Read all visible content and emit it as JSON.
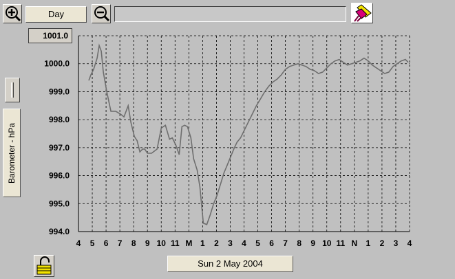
{
  "toolbar": {
    "zoom_in_icon": "zoom-in-magnifier-plus",
    "range_label": "Day",
    "zoom_out_icon": "zoom-out-magnifier-minus",
    "search_value": "",
    "eraser_icon": "eraser-pen"
  },
  "y_axis_button_label": "Barometer - hPa",
  "max_value_display": "1001.0",
  "date_label": "Sun 2 May 2004",
  "lock_icon": "padlock-open",
  "colors": {
    "background": "#c0c0c0",
    "plot_line": "#6e6e6e",
    "grid": "#000000"
  },
  "chart_data": {
    "type": "line",
    "xlabel": "",
    "ylabel": "Barometer - hPa",
    "ylim": [
      994.0,
      1001.0
    ],
    "ytick_labels": [
      "1001.0",
      "1000.0",
      "999.0",
      "998.0",
      "997.0",
      "996.0",
      "995.0",
      "994.0"
    ],
    "yticks": [
      1001,
      1000,
      999,
      998,
      997,
      996,
      995,
      994
    ],
    "xtick_labels": [
      "4",
      "5",
      "6",
      "7",
      "8",
      "9",
      "10",
      "11",
      "M",
      "1",
      "2",
      "3",
      "4",
      "5",
      "6",
      "7",
      "8",
      "9",
      "10",
      "11",
      "N",
      "1",
      "2",
      "3",
      "4"
    ],
    "grid": true,
    "series": [
      {
        "x": [
          0.75,
          0.9,
          1.1,
          1.35,
          1.5,
          1.65,
          1.8,
          2.05,
          2.35,
          2.7,
          3.05,
          3.3,
          3.6,
          3.8,
          4.05,
          4.25,
          4.45,
          4.65,
          4.8,
          5.0,
          5.3,
          5.7,
          6.0,
          6.3,
          6.6,
          6.8,
          7.05,
          7.3,
          7.5,
          7.7,
          7.9,
          8.15,
          8.35,
          8.6,
          8.8,
          9.05,
          9.3,
          9.55,
          9.8,
          10.05,
          10.3,
          10.55,
          10.8,
          11.05,
          11.3,
          11.5,
          11.75,
          12.0,
          12.3,
          12.6,
          12.9,
          13.2,
          13.5,
          13.8,
          14.1,
          14.4,
          14.7,
          15.0,
          15.3,
          15.6,
          15.9,
          16.2,
          16.5,
          16.8,
          17.1,
          17.4,
          17.7,
          18.0,
          18.3,
          18.6,
          18.9,
          19.2,
          19.5,
          19.8,
          20.1,
          20.4,
          20.7,
          21.0,
          21.3,
          21.6,
          21.9,
          22.2,
          22.5,
          22.8,
          23.1,
          23.4,
          23.7,
          23.9
        ],
        "y": [
          999.4,
          999.6,
          999.8,
          1000.2,
          1000.65,
          1000.45,
          999.7,
          999.0,
          998.3,
          998.3,
          998.2,
          998.1,
          998.5,
          997.9,
          997.4,
          997.25,
          996.85,
          996.95,
          996.95,
          996.8,
          996.8,
          996.95,
          997.7,
          997.8,
          997.3,
          997.35,
          997.1,
          996.75,
          997.75,
          997.8,
          997.75,
          997.35,
          996.6,
          996.2,
          995.6,
          994.3,
          994.25,
          994.6,
          995.0,
          995.3,
          995.7,
          996.1,
          996.4,
          996.7,
          997.0,
          997.2,
          997.35,
          997.6,
          997.9,
          998.2,
          998.5,
          998.75,
          999.0,
          999.2,
          999.35,
          999.45,
          999.6,
          999.8,
          999.9,
          999.95,
          1000.0,
          999.95,
          999.9,
          999.8,
          999.75,
          999.65,
          999.7,
          999.85,
          1000.0,
          1000.1,
          1000.15,
          1000.05,
          999.95,
          1000.0,
          1000.05,
          1000.1,
          1000.2,
          1000.1,
          999.95,
          999.85,
          999.75,
          999.65,
          999.7,
          999.9,
          1000.0,
          1000.1,
          1000.15,
          1000.05
        ]
      }
    ]
  }
}
